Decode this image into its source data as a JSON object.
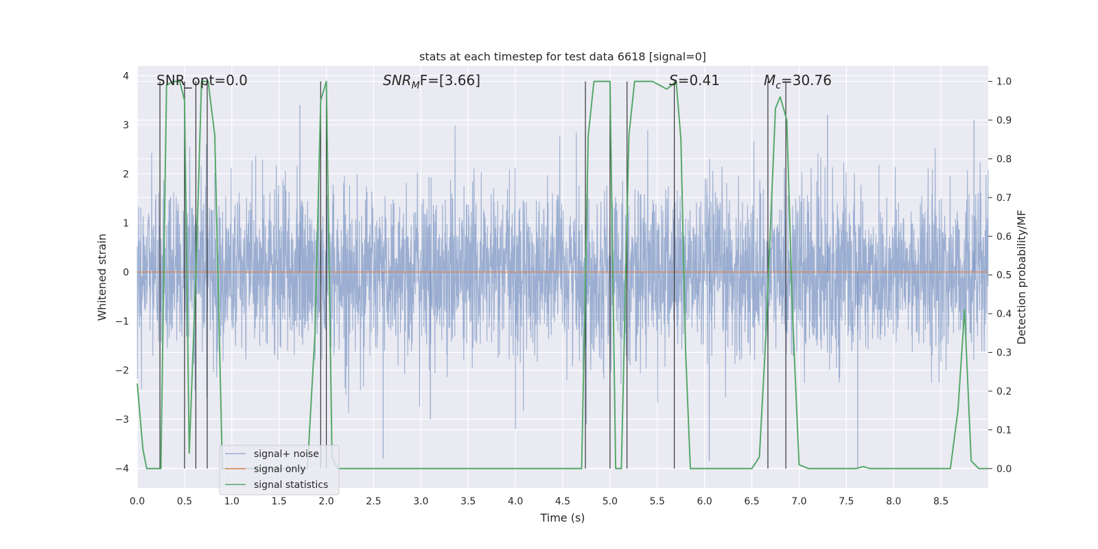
{
  "chart_data": {
    "type": "line",
    "title": "stats at each timestep for test data 6618 [signal=0]",
    "xlabel": "Time (s)",
    "ylabel_left": "Whitened strain",
    "ylabel_right": "Detection probability/MF",
    "xlim": [
      0.0,
      9.0
    ],
    "ylim_left": [
      -4.4,
      4.2
    ],
    "ylim_right": [
      -0.05,
      1.04
    ],
    "x_ticks": [
      0.0,
      0.5,
      1.0,
      1.5,
      2.0,
      2.5,
      3.0,
      3.5,
      4.0,
      4.5,
      5.0,
      5.5,
      6.0,
      6.5,
      7.0,
      7.5,
      8.0,
      8.5
    ],
    "x_tick_labels": [
      "0.0",
      "0.5",
      "1.0",
      "1.5",
      "2.0",
      "2.5",
      "3.0",
      "3.5",
      "4.0",
      "4.5",
      "5.0",
      "5.5",
      "6.0",
      "6.5",
      "7.0",
      "7.5",
      "8.0",
      "8.5"
    ],
    "y_left_ticks": [
      -4,
      -3,
      -2,
      -1,
      0,
      1,
      2,
      3,
      4
    ],
    "y_left_tick_labels": [
      "−4",
      "−3",
      "−2",
      "−1",
      "0",
      "1",
      "2",
      "3",
      "4"
    ],
    "y_right_ticks": [
      0.0,
      0.1,
      0.2,
      0.3,
      0.4,
      0.5,
      0.6,
      0.7,
      0.8,
      0.9,
      1.0
    ],
    "y_right_tick_labels": [
      "0.0",
      "0.1",
      "0.2",
      "0.3",
      "0.4",
      "0.5",
      "0.6",
      "0.7",
      "0.8",
      "0.9",
      "1.0"
    ],
    "grid": true,
    "legend_position": "lower-left",
    "annotations": {
      "snr_opt": "SNR_opt=0.0",
      "snr_mf_main": "SNR",
      "snr_mf_sub": "M",
      "snr_mf_tail": "F=[3.66]",
      "s_prefix": "S",
      "s_value": "=0.41",
      "mc_main": "M",
      "mc_sub": "c",
      "mc_value": "=30.76"
    },
    "series": [
      {
        "name": "signal+ noise",
        "color": "#4c72b0",
        "axis": "left",
        "kind": "noise",
        "x_range": [
          0.0,
          9.0
        ],
        "std": 0.85,
        "y_min": -3.4,
        "y_max": 3.9,
        "outliers": [
          {
            "x": 2.6,
            "y": -3.8
          },
          {
            "x": 6.05,
            "y": -3.85
          },
          {
            "x": 7.62,
            "y": -4.0
          },
          {
            "x": 4.75,
            "y": -3.1
          },
          {
            "x": 4.0,
            "y": -3.2
          },
          {
            "x": 1.72,
            "y": 3.4
          },
          {
            "x": 0.5,
            "y": 3.6
          },
          {
            "x": 8.85,
            "y": 3.1
          },
          {
            "x": 7.3,
            "y": 3.2
          },
          {
            "x": 3.1,
            "y": -3.0
          }
        ]
      },
      {
        "name": "signal only",
        "color": "#dd8452",
        "axis": "left",
        "kind": "constant",
        "value": 0.0
      },
      {
        "name": "signal statistics",
        "color": "#55a868",
        "axis": "right",
        "kind": "line",
        "x": [
          0.0,
          0.06,
          0.1,
          0.2,
          0.25,
          0.31,
          0.38,
          0.45,
          0.5,
          0.55,
          0.62,
          0.68,
          0.75,
          0.82,
          0.9,
          1.0,
          1.8,
          1.88,
          1.94,
          2.0,
          2.06,
          2.12,
          2.2,
          4.7,
          4.77,
          4.83,
          4.9,
          5.0,
          5.06,
          5.12,
          5.2,
          5.26,
          5.33,
          5.45,
          5.6,
          5.7,
          5.75,
          5.8,
          5.85,
          6.0,
          6.5,
          6.58,
          6.65,
          6.75,
          6.8,
          6.87,
          6.93,
          7.0,
          7.1,
          7.6,
          7.68,
          7.75,
          8.6,
          8.68,
          8.75,
          8.82,
          8.9,
          9.0
        ],
        "y": [
          0.22,
          0.05,
          0.0,
          0.0,
          0.0,
          0.99,
          1.0,
          1.0,
          0.95,
          0.04,
          0.5,
          1.0,
          1.0,
          0.86,
          0.0,
          0.0,
          0.0,
          0.35,
          0.95,
          1.0,
          0.03,
          0.0,
          0.0,
          0.0,
          0.86,
          1.0,
          1.0,
          1.0,
          0.0,
          0.0,
          0.86,
          1.0,
          1.0,
          1.0,
          0.98,
          1.0,
          0.85,
          0.3,
          0.0,
          0.0,
          0.0,
          0.03,
          0.35,
          0.93,
          0.96,
          0.9,
          0.4,
          0.01,
          0.0,
          0.0,
          0.005,
          0.0,
          0.0,
          0.15,
          0.41,
          0.02,
          0.0,
          0.0
        ]
      }
    ],
    "vlines": {
      "color": "#333333",
      "x": [
        0.24,
        0.5,
        0.62,
        0.74,
        1.94,
        2.0,
        4.74,
        5.0,
        5.18,
        5.68,
        6.67,
        6.86
      ]
    }
  }
}
